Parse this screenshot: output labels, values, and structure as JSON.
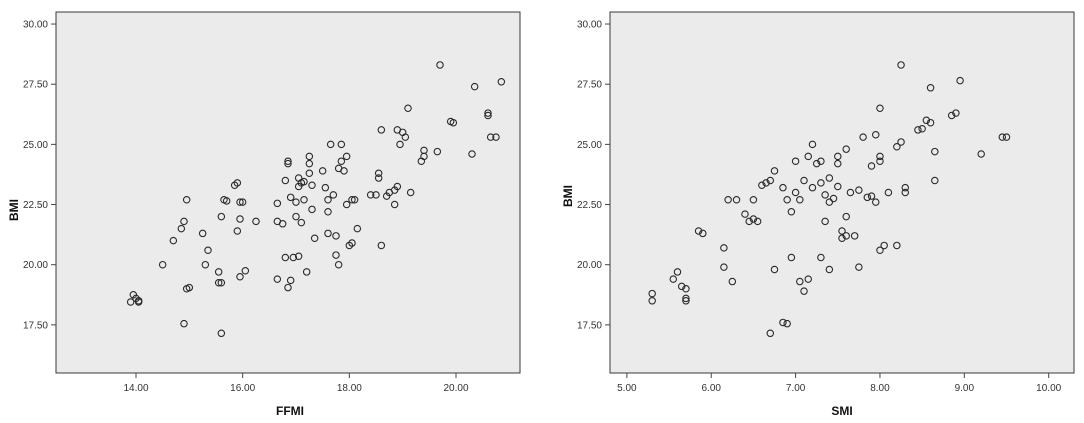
{
  "chart_data": [
    {
      "type": "scatter",
      "title": "",
      "xlabel": "FFMI",
      "ylabel": "BMI",
      "xlim": [
        12.5,
        21.2
      ],
      "ylim": [
        15.5,
        30.5
      ],
      "xticks": [
        "14.00",
        "16.00",
        "18.00",
        "20.00"
      ],
      "xtick_values": [
        14,
        16,
        18,
        20
      ],
      "yticks": [
        "17.50",
        "20.00",
        "22.50",
        "25.00",
        "27.50",
        "30.00"
      ],
      "ytick_values": [
        17.5,
        20,
        22.5,
        25,
        27.5,
        30
      ],
      "grid": false,
      "plot_background": "#ebebeb",
      "marker_color": "#2b2b2b",
      "series": [
        {
          "points": [
            [
              13.95,
              18.75
            ],
            [
              13.9,
              18.45
            ],
            [
              14.05,
              18.45
            ],
            [
              14.0,
              18.6
            ],
            [
              14.05,
              18.5
            ],
            [
              14.5,
              20.0
            ],
            [
              14.7,
              21.0
            ],
            [
              14.85,
              21.5
            ],
            [
              14.9,
              21.8
            ],
            [
              14.95,
              22.7
            ],
            [
              14.9,
              17.55
            ],
            [
              14.95,
              19.0
            ],
            [
              15.0,
              19.05
            ],
            [
              15.3,
              20.0
            ],
            [
              15.35,
              20.6
            ],
            [
              15.25,
              21.3
            ],
            [
              15.55,
              19.7
            ],
            [
              15.55,
              19.25
            ],
            [
              15.6,
              19.25
            ],
            [
              15.65,
              22.7
            ],
            [
              15.7,
              22.65
            ],
            [
              15.6,
              22.0
            ],
            [
              15.6,
              17.15
            ],
            [
              15.85,
              23.3
            ],
            [
              15.9,
              23.4
            ],
            [
              15.95,
              22.6
            ],
            [
              16.0,
              22.6
            ],
            [
              15.9,
              21.4
            ],
            [
              15.95,
              21.9
            ],
            [
              15.95,
              19.5
            ],
            [
              16.05,
              19.75
            ],
            [
              16.25,
              21.8
            ],
            [
              16.65,
              22.55
            ],
            [
              16.65,
              21.8
            ],
            [
              16.65,
              19.4
            ],
            [
              16.75,
              21.7
            ],
            [
              16.8,
              23.5
            ],
            [
              16.85,
              24.2
            ],
            [
              16.85,
              24.3
            ],
            [
              16.9,
              22.8
            ],
            [
              16.8,
              20.3
            ],
            [
              16.85,
              19.05
            ],
            [
              16.9,
              19.35
            ],
            [
              16.95,
              20.3
            ],
            [
              17.0,
              22.6
            ],
            [
              17.0,
              22.0
            ],
            [
              17.05,
              23.6
            ],
            [
              17.05,
              23.25
            ],
            [
              17.1,
              23.4
            ],
            [
              17.15,
              23.45
            ],
            [
              17.05,
              20.35
            ],
            [
              17.1,
              21.75
            ],
            [
              17.15,
              22.7
            ],
            [
              17.2,
              19.7
            ],
            [
              17.25,
              24.2
            ],
            [
              17.25,
              24.5
            ],
            [
              17.25,
              23.8
            ],
            [
              17.3,
              23.3
            ],
            [
              17.3,
              22.3
            ],
            [
              17.35,
              21.1
            ],
            [
              17.5,
              23.9
            ],
            [
              17.55,
              23.2
            ],
            [
              17.6,
              22.7
            ],
            [
              17.6,
              21.3
            ],
            [
              17.6,
              22.2
            ],
            [
              17.65,
              25.0
            ],
            [
              17.7,
              22.9
            ],
            [
              17.75,
              21.2
            ],
            [
              17.75,
              20.4
            ],
            [
              17.8,
              20.0
            ],
            [
              17.8,
              24.0
            ],
            [
              17.85,
              24.3
            ],
            [
              17.85,
              25.0
            ],
            [
              17.9,
              23.9
            ],
            [
              17.95,
              24.5
            ],
            [
              17.95,
              22.5
            ],
            [
              18.0,
              20.8
            ],
            [
              18.05,
              20.9
            ],
            [
              18.05,
              22.7
            ],
            [
              18.1,
              22.7
            ],
            [
              18.15,
              21.5
            ],
            [
              18.4,
              22.9
            ],
            [
              18.5,
              22.9
            ],
            [
              18.55,
              23.6
            ],
            [
              18.55,
              23.8
            ],
            [
              18.6,
              25.6
            ],
            [
              18.6,
              20.8
            ],
            [
              18.7,
              22.85
            ],
            [
              18.75,
              23.0
            ],
            [
              18.85,
              22.5
            ],
            [
              18.85,
              23.1
            ],
            [
              18.9,
              25.6
            ],
            [
              18.9,
              23.25
            ],
            [
              18.95,
              25.0
            ],
            [
              19.0,
              25.5
            ],
            [
              19.05,
              25.3
            ],
            [
              19.1,
              26.5
            ],
            [
              19.15,
              23.0
            ],
            [
              19.35,
              24.3
            ],
            [
              19.4,
              24.5
            ],
            [
              19.4,
              24.75
            ],
            [
              19.65,
              24.7
            ],
            [
              19.7,
              28.3
            ],
            [
              19.9,
              25.95
            ],
            [
              19.95,
              25.9
            ],
            [
              20.3,
              24.6
            ],
            [
              20.35,
              27.4
            ],
            [
              20.6,
              26.2
            ],
            [
              20.6,
              26.3
            ],
            [
              20.65,
              25.3
            ],
            [
              20.75,
              25.3
            ],
            [
              20.85,
              27.6
            ]
          ]
        }
      ]
    },
    {
      "type": "scatter",
      "title": "",
      "xlabel": "SMI",
      "ylabel": "BMI",
      "xlim": [
        4.8,
        10.3
      ],
      "ylim": [
        15.5,
        30.5
      ],
      "xticks": [
        "5.00",
        "6.00",
        "7.00",
        "8.00",
        "9.00",
        "10.00"
      ],
      "xtick_values": [
        5,
        6,
        7,
        8,
        9,
        10
      ],
      "yticks": [
        "17.50",
        "20.00",
        "22.50",
        "25.00",
        "27.50",
        "30.00"
      ],
      "ytick_values": [
        17.5,
        20,
        22.5,
        25,
        27.5,
        30
      ],
      "grid": false,
      "plot_background": "#ebebeb",
      "marker_color": "#2b2b2b",
      "series": [
        {
          "points": [
            [
              5.3,
              18.8
            ],
            [
              5.3,
              18.5
            ],
            [
              5.55,
              19.4
            ],
            [
              5.6,
              19.7
            ],
            [
              5.65,
              19.1
            ],
            [
              5.7,
              19.0
            ],
            [
              5.7,
              18.5
            ],
            [
              5.7,
              18.6
            ],
            [
              5.85,
              21.4
            ],
            [
              5.9,
              21.3
            ],
            [
              6.15,
              20.7
            ],
            [
              6.15,
              19.9
            ],
            [
              6.2,
              22.7
            ],
            [
              6.25,
              19.3
            ],
            [
              6.3,
              22.7
            ],
            [
              6.4,
              22.1
            ],
            [
              6.45,
              21.8
            ],
            [
              6.5,
              22.7
            ],
            [
              6.5,
              21.9
            ],
            [
              6.55,
              21.8
            ],
            [
              6.6,
              23.3
            ],
            [
              6.65,
              23.4
            ],
            [
              6.7,
              23.5
            ],
            [
              6.75,
              23.9
            ],
            [
              6.7,
              17.15
            ],
            [
              6.75,
              19.8
            ],
            [
              6.85,
              23.2
            ],
            [
              6.9,
              22.7
            ],
            [
              6.95,
              22.2
            ],
            [
              6.95,
              20.3
            ],
            [
              6.85,
              17.6
            ],
            [
              6.9,
              17.55
            ],
            [
              7.0,
              24.3
            ],
            [
              7.0,
              23.0
            ],
            [
              7.05,
              22.7
            ],
            [
              7.1,
              23.5
            ],
            [
              7.15,
              24.5
            ],
            [
              7.2,
              25.0
            ],
            [
              7.15,
              19.4
            ],
            [
              7.1,
              18.9
            ],
            [
              7.05,
              19.3
            ],
            [
              7.2,
              23.2
            ],
            [
              7.25,
              24.2
            ],
            [
              7.3,
              23.4
            ],
            [
              7.3,
              24.3
            ],
            [
              7.35,
              22.9
            ],
            [
              7.35,
              21.8
            ],
            [
              7.3,
              20.3
            ],
            [
              7.4,
              22.6
            ],
            [
              7.4,
              23.6
            ],
            [
              7.4,
              19.8
            ],
            [
              7.45,
              22.75
            ],
            [
              7.5,
              24.5
            ],
            [
              7.5,
              24.2
            ],
            [
              7.5,
              23.25
            ],
            [
              7.55,
              21.4
            ],
            [
              7.55,
              21.1
            ],
            [
              7.6,
              24.8
            ],
            [
              7.6,
              22.0
            ],
            [
              7.6,
              21.2
            ],
            [
              7.65,
              23.0
            ],
            [
              7.7,
              21.2
            ],
            [
              7.75,
              23.1
            ],
            [
              7.75,
              19.9
            ],
            [
              7.8,
              25.3
            ],
            [
              7.85,
              22.8
            ],
            [
              7.9,
              22.85
            ],
            [
              7.9,
              24.1
            ],
            [
              7.95,
              25.4
            ],
            [
              7.95,
              22.6
            ],
            [
              8.0,
              24.3
            ],
            [
              8.0,
              24.5
            ],
            [
              8.0,
              26.5
            ],
            [
              8.0,
              20.6
            ],
            [
              8.05,
              20.8
            ],
            [
              8.1,
              23.0
            ],
            [
              8.2,
              24.9
            ],
            [
              8.2,
              20.8
            ],
            [
              8.25,
              28.3
            ],
            [
              8.25,
              25.1
            ],
            [
              8.3,
              23.2
            ],
            [
              8.3,
              23.0
            ],
            [
              8.45,
              25.6
            ],
            [
              8.5,
              25.65
            ],
            [
              8.55,
              26.0
            ],
            [
              8.6,
              25.9
            ],
            [
              8.6,
              27.35
            ],
            [
              8.65,
              24.7
            ],
            [
              8.65,
              23.5
            ],
            [
              8.85,
              26.2
            ],
            [
              8.9,
              26.3
            ],
            [
              8.95,
              27.65
            ],
            [
              9.2,
              24.6
            ],
            [
              9.45,
              25.3
            ],
            [
              9.5,
              25.3
            ]
          ]
        }
      ]
    }
  ]
}
